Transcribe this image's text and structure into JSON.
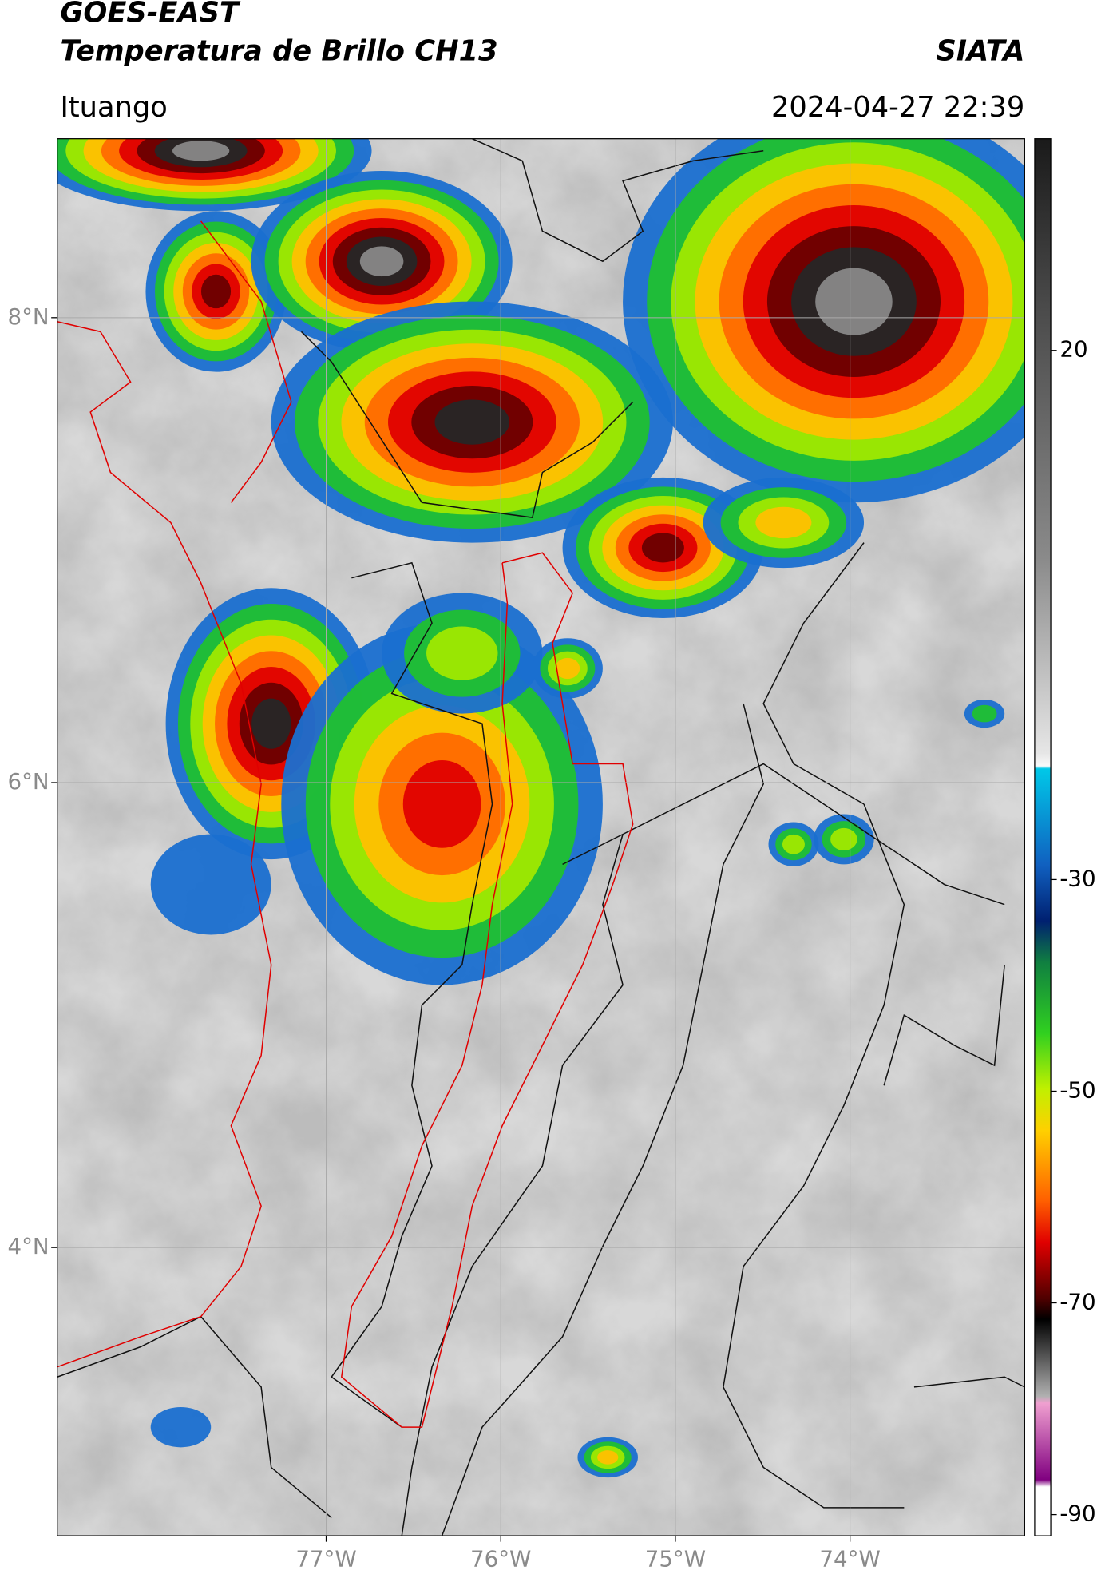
{
  "header": {
    "title": "GOES-EAST",
    "subtitle": "Temperatura de Brillo CH13",
    "agency": "SIATA",
    "location": "Ituango",
    "datetime": "2024-04-27 22:39"
  },
  "map": {
    "xlim": [
      -78.54,
      -73.0
    ],
    "ylim": [
      2.76,
      8.77
    ],
    "xticks": [
      {
        "value": -77,
        "label": "77°W"
      },
      {
        "value": -76,
        "label": "76°W"
      },
      {
        "value": -75,
        "label": "75°W"
      },
      {
        "value": -74,
        "label": "74°W"
      }
    ],
    "yticks": [
      {
        "value": 8,
        "label": "8°N"
      },
      {
        "value": 6,
        "label": "6°N"
      },
      {
        "value": 4,
        "label": "4°N"
      }
    ],
    "grid": true
  },
  "colorbar": {
    "lim": [
      -92,
      40
    ],
    "ticks": [
      20,
      -30,
      -50,
      -70,
      -90
    ]
  }
}
